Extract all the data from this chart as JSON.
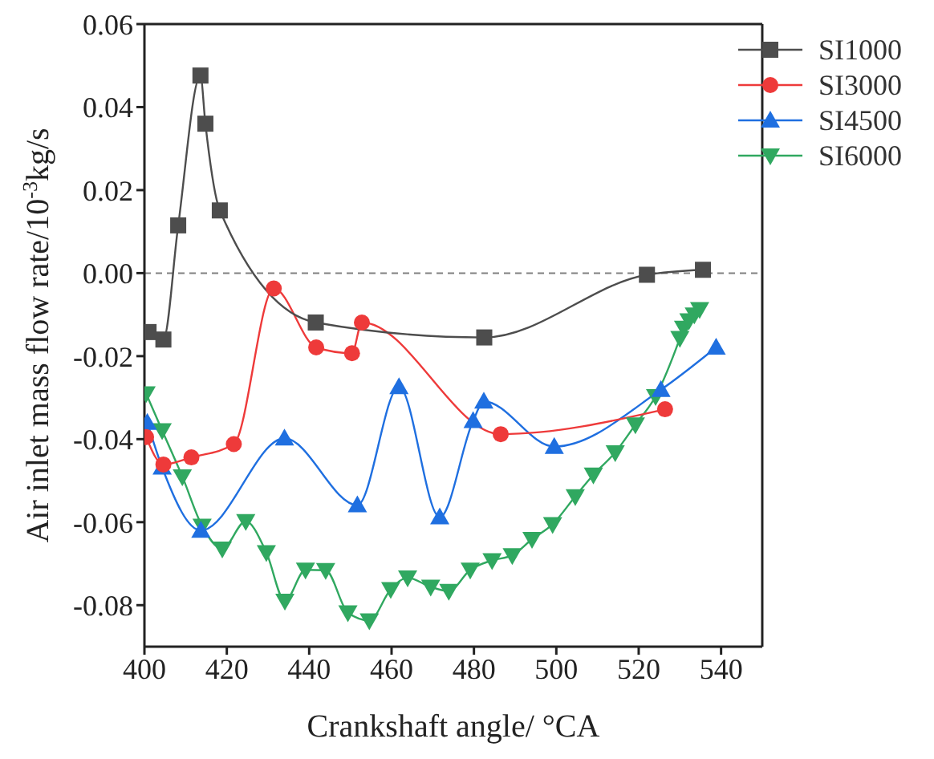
{
  "chart_data": {
    "type": "line",
    "xlabel": "Crankshaft angle/ °CA",
    "ylabel": "Air inlet mass flow rate/10$^{-3}$kg/s",
    "xlim": [
      400,
      550
    ],
    "xticks": [
      400,
      420,
      440,
      460,
      480,
      500,
      520,
      540
    ],
    "ylim": [
      -0.09,
      0.06
    ],
    "yticks": [
      {
        "value": -0.08,
        "label": "-0.08"
      },
      {
        "value": -0.06,
        "label": "-0.06"
      },
      {
        "value": -0.04,
        "label": "-0.04"
      },
      {
        "value": -0.02,
        "label": "-0.02"
      },
      {
        "value": 0,
        "label": "0.00"
      },
      {
        "value": 0.02,
        "label": "0.02"
      },
      {
        "value": 0.04,
        "label": "0.04"
      },
      {
        "value": 0.06,
        "label": "0.06"
      }
    ],
    "legend": "top right",
    "ref_lines": [
      {
        "axis": "y",
        "value": 0,
        "label": null,
        "color": "#808080",
        "line_style": "dashed"
      }
    ],
    "series": [
      {
        "name": "SI1000",
        "color": "#4d4d4d",
        "marker": "square",
        "x": [
          401,
          404.6,
          408.2,
          413.6,
          414.8,
          418.3,
          441.6,
          482.5,
          522,
          535.6
        ],
        "values": [
          -0.0142,
          -0.016,
          0.0115,
          0.0476,
          0.036,
          0.0151,
          -0.0119,
          -0.0155,
          -0.0004,
          0.0008
        ]
      },
      {
        "name": "SI3000",
        "color": "#ee3a3a",
        "marker": "circle",
        "x": [
          400.4,
          404.6,
          411.4,
          421.7,
          431.4,
          441.7,
          450.4,
          452.8,
          486.5,
          526.4
        ],
        "values": [
          -0.0395,
          -0.0461,
          -0.0444,
          -0.0412,
          -0.0037,
          -0.0179,
          -0.0193,
          -0.0119,
          -0.0388,
          -0.0328
        ]
      },
      {
        "name": "SI4500",
        "color": "#1f6fe0",
        "marker": "triangle",
        "x": [
          400.7,
          404.3,
          413.7,
          434,
          451.7,
          461.8,
          471.7,
          479.8,
          482.4,
          499.5,
          525.4,
          538.8
        ],
        "values": [
          -0.036,
          -0.0468,
          -0.062,
          -0.0398,
          -0.0559,
          -0.0274,
          -0.0588,
          -0.0356,
          -0.0309,
          -0.0418,
          -0.0281,
          -0.0179
        ]
      },
      {
        "name": "SI6000",
        "color": "#30a860",
        "marker": "triangle-down",
        "x": [
          400.4,
          404.3,
          409.2,
          414,
          418.9,
          424.6,
          429.6,
          434.1,
          439.1,
          444,
          449.4,
          454.6,
          459.8,
          463.9,
          469.5,
          473.9,
          479.1,
          484.4,
          489.3,
          494.1,
          499.1,
          504.6,
          509,
          514.3,
          519.2,
          524.1,
          530,
          530.9,
          532.2,
          533.5,
          534.8
        ],
        "values": [
          -0.029,
          -0.0379,
          -0.049,
          -0.0609,
          -0.0664,
          -0.0598,
          -0.0673,
          -0.079,
          -0.0715,
          -0.0716,
          -0.0818,
          -0.0837,
          -0.0762,
          -0.0734,
          -0.0756,
          -0.0766,
          -0.0715,
          -0.0692,
          -0.068,
          -0.0641,
          -0.0605,
          -0.0538,
          -0.0486,
          -0.0432,
          -0.0365,
          -0.0297,
          -0.0157,
          -0.0132,
          -0.0114,
          -0.01,
          -0.0087
        ]
      }
    ]
  }
}
